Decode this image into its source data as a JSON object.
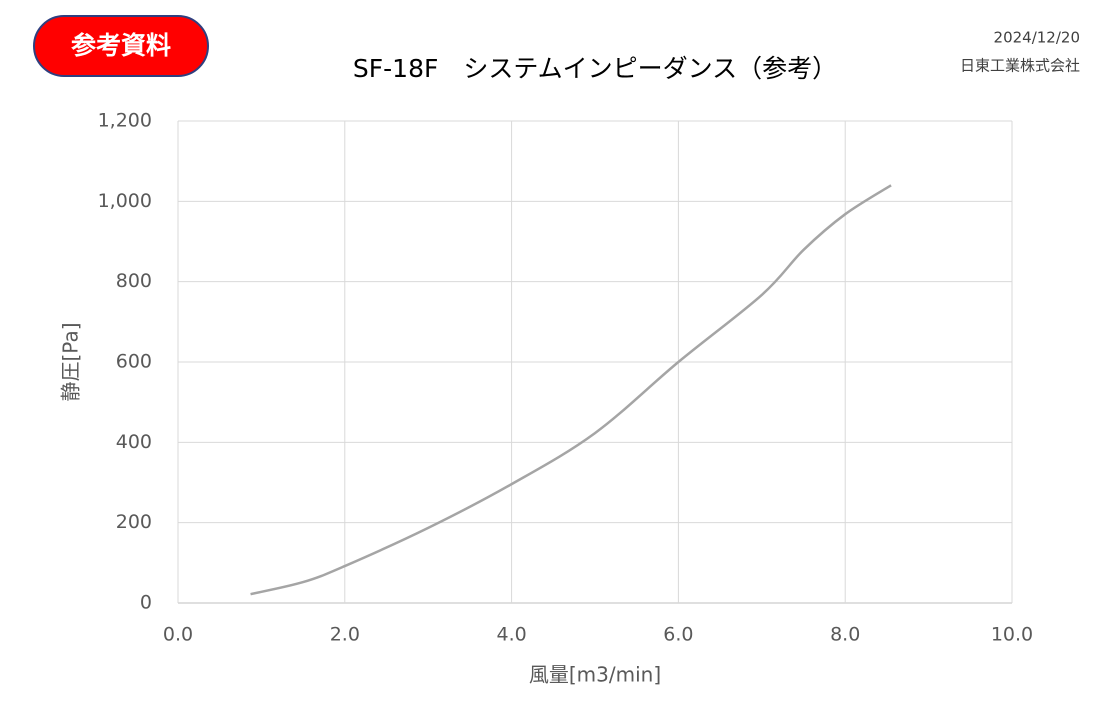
{
  "chart_data": {
    "type": "line",
    "title": "SF-18F　システムインピーダンス（参考）",
    "badge": "参考資料",
    "date": "2024/12/20",
    "company": "日東工業株式会社",
    "x_label": "風量[m3/min]",
    "y_label": "静圧[Pa]",
    "series": [
      {
        "color": "#a5a5a5",
        "x": [
          0.87,
          1.5,
          2.0,
          3.0,
          4.0,
          5.0,
          6.0,
          7.0,
          7.5,
          8.0,
          8.55
        ],
        "values": [
          22,
          52,
          92,
          187,
          296,
          423,
          600,
          767,
          879,
          968,
          1040
        ]
      }
    ],
    "xlim": [
      0,
      10
    ],
    "ylim": [
      0,
      1200
    ],
    "xticks": [
      {
        "value": 0,
        "label": "0.0"
      },
      {
        "value": 2,
        "label": "2.0"
      },
      {
        "value": 4,
        "label": "4.0"
      },
      {
        "value": 6,
        "label": "6.0"
      },
      {
        "value": 8,
        "label": "8.0"
      },
      {
        "value": 10,
        "label": "10.0"
      }
    ],
    "yticks": [
      0,
      200,
      400,
      600,
      800,
      {
        "value": 1000,
        "label": "1,000"
      },
      {
        "value": 1200,
        "label": "1,200"
      }
    ],
    "grid": true
  }
}
